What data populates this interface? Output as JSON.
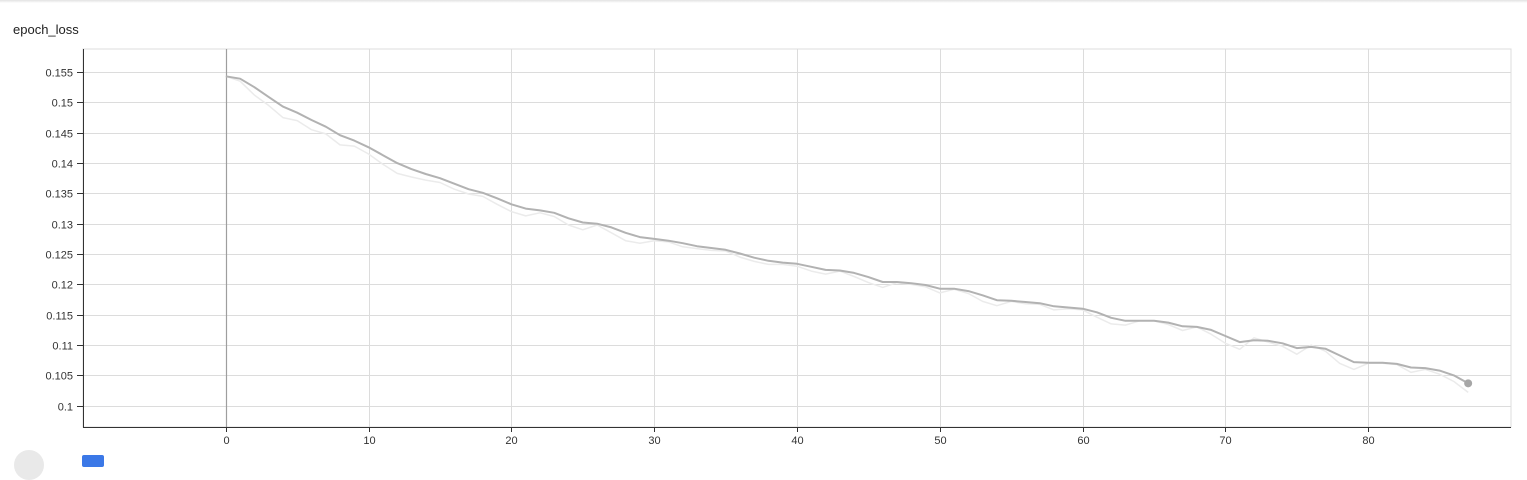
{
  "chart_title": "epoch_loss",
  "colors": {
    "raw_line": "#ebebeb",
    "smoothed_line": "#b2b2b2",
    "grid": "#dcdcdc",
    "zero_axis": "#9e9e9e",
    "end_marker": "#a6a6a6"
  },
  "icons": {
    "footer_left": "toggle-circle-icon",
    "footer_right": "expand-square-icon"
  },
  "chart_data": {
    "type": "line",
    "title": "epoch_loss",
    "xlabel": "",
    "ylabel": "",
    "xlim": [
      -10,
      90
    ],
    "ylim": [
      0.0965,
      0.1588
    ],
    "xticks": [
      0,
      10,
      20,
      30,
      40,
      50,
      60,
      70,
      80
    ],
    "yticks": [
      0.1,
      0.105,
      0.11,
      0.115,
      0.12,
      0.125,
      0.13,
      0.135,
      0.14,
      0.145,
      0.15,
      0.155
    ],
    "ytick_labels": [
      "0.1",
      "0.105",
      "0.11",
      "0.115",
      "0.12",
      "0.125",
      "0.13",
      "0.135",
      "0.14",
      "0.145",
      "0.15",
      "0.155"
    ],
    "xtick_labels": [
      "0",
      "10",
      "20",
      "30",
      "40",
      "50",
      "60",
      "70",
      "80"
    ],
    "grid": true,
    "legend": "none",
    "x": [
      0,
      1,
      2,
      3,
      4,
      5,
      6,
      7,
      8,
      9,
      10,
      11,
      12,
      13,
      14,
      15,
      16,
      17,
      18,
      19,
      20,
      21,
      22,
      23,
      24,
      25,
      26,
      27,
      28,
      29,
      30,
      31,
      32,
      33,
      34,
      35,
      36,
      37,
      38,
      39,
      40,
      41,
      42,
      43,
      44,
      45,
      46,
      47,
      48,
      49,
      50,
      51,
      52,
      53,
      54,
      55,
      56,
      57,
      58,
      59,
      60,
      61,
      62,
      63,
      64,
      65,
      66,
      67,
      68,
      69,
      70,
      71,
      72,
      73,
      74,
      75,
      76,
      77,
      78,
      79,
      80,
      81,
      82,
      83,
      84,
      85,
      86,
      87
    ],
    "series": [
      {
        "values": [
          0.1543,
          0.1535,
          0.1512,
          0.1495,
          0.1475,
          0.147,
          0.1455,
          0.1448,
          0.143,
          0.1428,
          0.1415,
          0.1398,
          0.1383,
          0.1377,
          0.1372,
          0.1368,
          0.1357,
          0.1349,
          0.1345,
          0.1332,
          0.132,
          0.1313,
          0.1318,
          0.1312,
          0.1298,
          0.129,
          0.1298,
          0.1285,
          0.1272,
          0.1268,
          0.1272,
          0.127,
          0.1262,
          0.1259,
          0.1256,
          0.1255,
          0.1245,
          0.1238,
          0.1233,
          0.1233,
          0.123,
          0.1222,
          0.1217,
          0.1222,
          0.1213,
          0.1203,
          0.1195,
          0.1203,
          0.12,
          0.1196,
          0.1186,
          0.1192,
          0.1185,
          0.1172,
          0.1165,
          0.1172,
          0.1168,
          0.1167,
          0.1158,
          0.116,
          0.1158,
          0.1146,
          0.1135,
          0.1133,
          0.114,
          0.114,
          0.1134,
          0.1124,
          0.113,
          0.1118,
          0.1103,
          0.1093,
          0.1112,
          0.1105,
          0.1098,
          0.1085,
          0.11,
          0.109,
          0.107,
          0.106,
          0.107,
          0.107,
          0.1068,
          0.1055,
          0.106,
          0.1052,
          0.104,
          0.1022
        ]
      },
      {
        "values": [
          0.1543,
          0.1539,
          0.1525,
          0.1509,
          0.1493,
          0.1483,
          0.1471,
          0.146,
          0.1446,
          0.1437,
          0.1426,
          0.1413,
          0.14,
          0.139,
          0.1382,
          0.1375,
          0.1366,
          0.1357,
          0.1351,
          0.1342,
          0.1332,
          0.1325,
          0.1322,
          0.1318,
          0.1309,
          0.1302,
          0.13,
          0.1294,
          0.1285,
          0.1278,
          0.1275,
          0.1272,
          0.1268,
          0.1263,
          0.126,
          0.1257,
          0.1251,
          0.1244,
          0.1239,
          0.1236,
          0.1234,
          0.1229,
          0.1224,
          0.1223,
          0.1219,
          0.1212,
          0.1204,
          0.1204,
          0.1202,
          0.1199,
          0.1193,
          0.1193,
          0.1189,
          0.1182,
          0.1174,
          0.1173,
          0.1171,
          0.1169,
          0.1164,
          0.1162,
          0.116,
          0.1154,
          0.1145,
          0.114,
          0.114,
          0.114,
          0.1137,
          0.1131,
          0.113,
          0.1125,
          0.1115,
          0.1105,
          0.1108,
          0.1107,
          0.1103,
          0.1095,
          0.1097,
          0.1094,
          0.1083,
          0.1072,
          0.1071,
          0.1071,
          0.1069,
          0.1063,
          0.1062,
          0.1058,
          0.105,
          0.1037
        ]
      }
    ]
  }
}
